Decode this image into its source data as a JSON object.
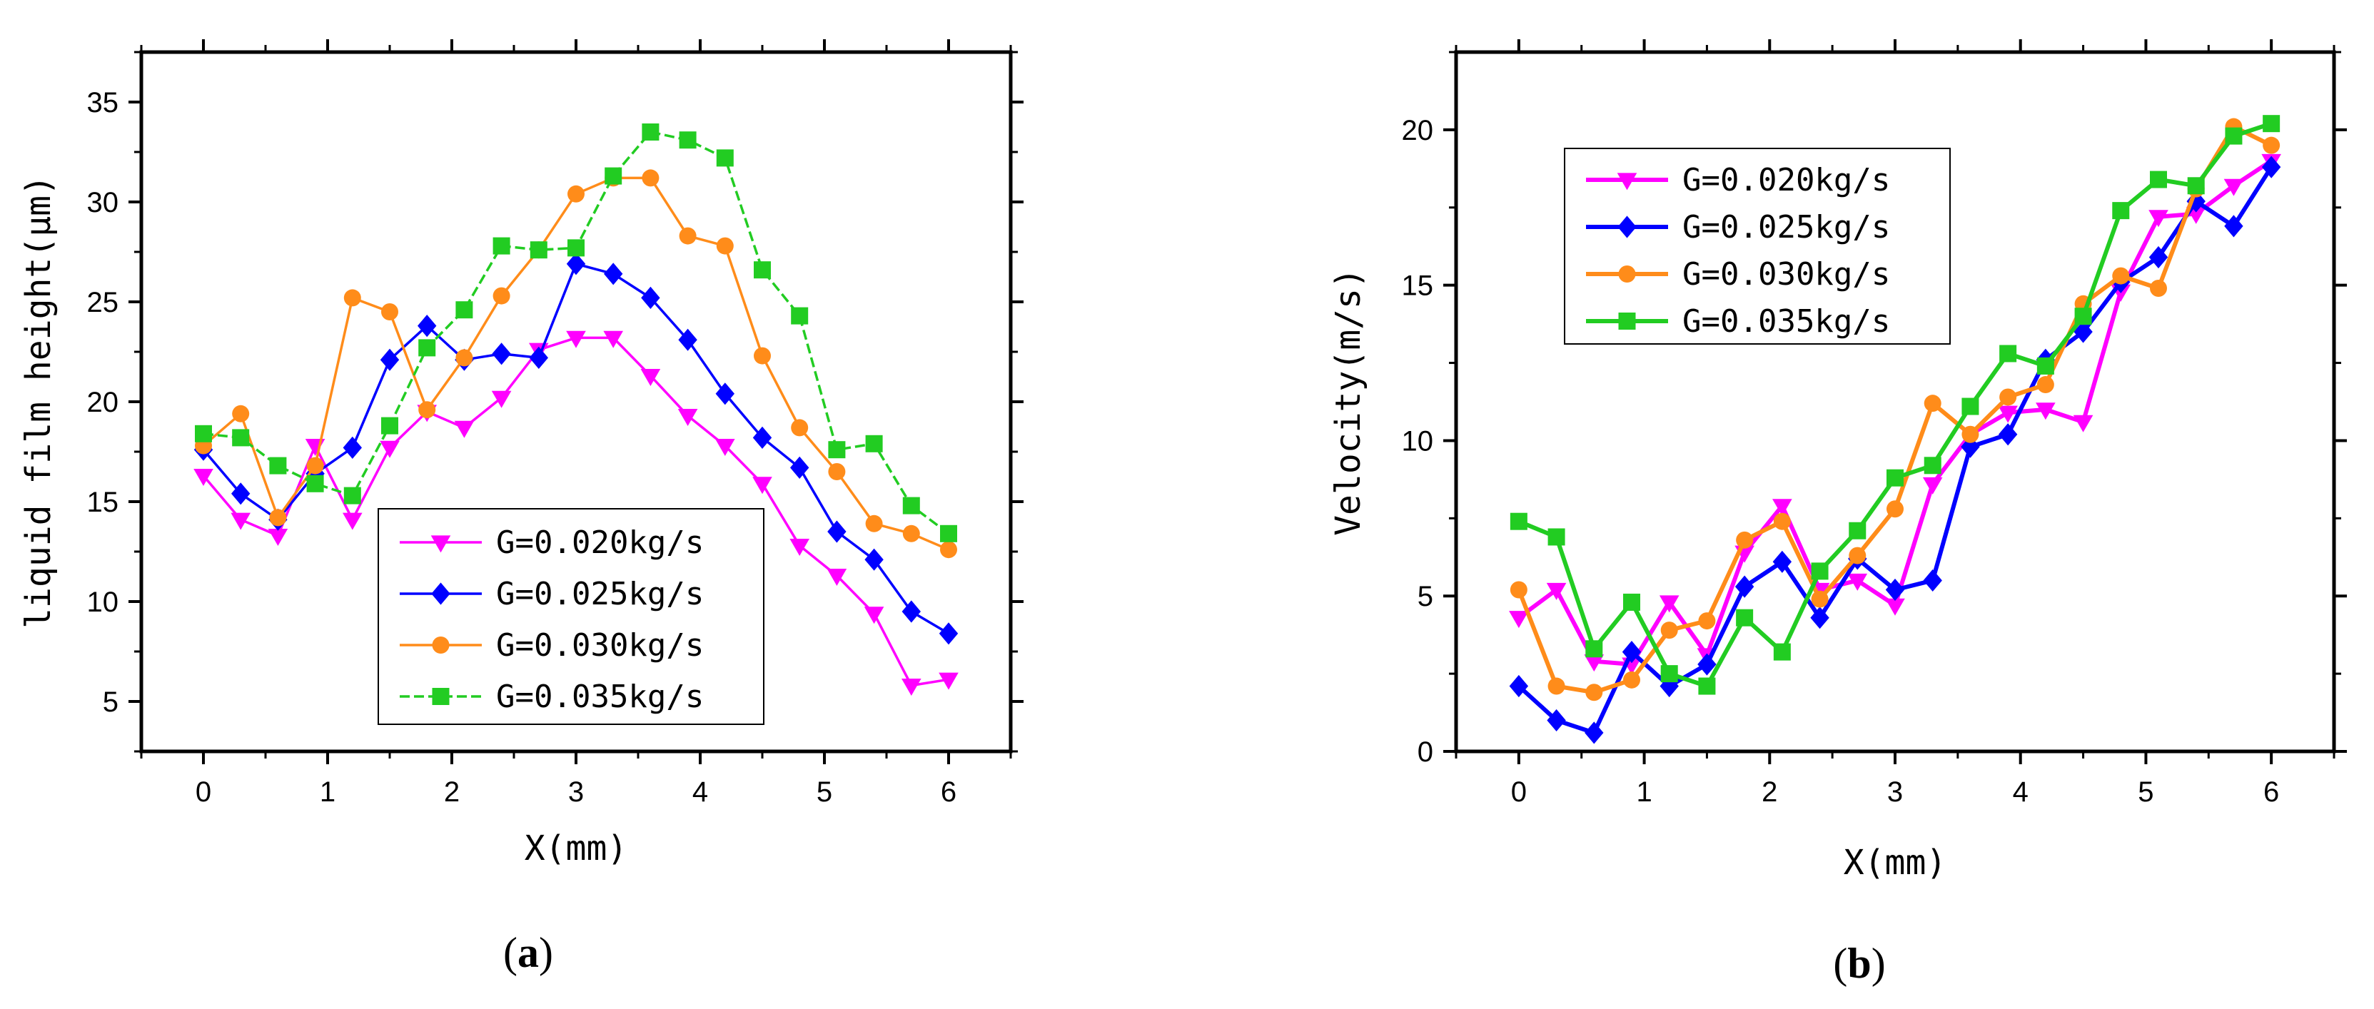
{
  "chart_data": [
    {
      "type": "line",
      "panel_label": "a",
      "xlabel": "X(mm)",
      "ylabel": "liquid film height(μm)",
      "xlim": [
        -0.5,
        6.5
      ],
      "ylim": [
        2.5,
        37.5
      ],
      "xticks": [
        0,
        1,
        2,
        3,
        4,
        5,
        6
      ],
      "yticks": [
        5,
        10,
        15,
        20,
        25,
        30,
        35
      ],
      "x": [
        0,
        0.3,
        0.6,
        0.9,
        1.2,
        1.5,
        1.8,
        2.1,
        2.4,
        2.7,
        3.0,
        3.3,
        3.6,
        3.9,
        4.2,
        4.5,
        4.8,
        5.1,
        5.4,
        5.7,
        6.0
      ],
      "legend_position": "bottom-center",
      "series": [
        {
          "name": "G=0.020kg/s",
          "color": "#ff00ff",
          "marker": "triangle-down",
          "dash": "solid",
          "values": [
            16.3,
            14.1,
            13.3,
            17.8,
            14.1,
            17.7,
            19.5,
            18.7,
            20.2,
            22.6,
            23.2,
            23.2,
            21.3,
            19.3,
            17.8,
            15.9,
            12.8,
            11.3,
            9.4,
            5.8,
            6.1
          ]
        },
        {
          "name": "G=0.025kg/s",
          "color": "#0000ff",
          "marker": "diamond",
          "dash": "solid",
          "values": [
            17.6,
            15.4,
            14.1,
            16.4,
            17.7,
            22.1,
            23.8,
            22.1,
            22.4,
            22.2,
            26.9,
            26.4,
            25.2,
            23.1,
            20.4,
            18.2,
            16.7,
            13.5,
            12.1,
            9.5,
            8.4
          ]
        },
        {
          "name": "G=0.030kg/s",
          "color": "#ff8c1a",
          "marker": "circle",
          "dash": "solid",
          "values": [
            17.8,
            19.4,
            14.2,
            16.8,
            25.2,
            24.5,
            19.6,
            22.2,
            25.3,
            27.6,
            30.4,
            31.2,
            31.2,
            28.3,
            27.8,
            22.3,
            18.7,
            16.5,
            13.9,
            13.4,
            12.6
          ]
        },
        {
          "name": "G=0.035kg/s",
          "color": "#22cc22",
          "marker": "square",
          "dash": "dashed",
          "values": [
            18.4,
            18.2,
            16.8,
            15.9,
            15.3,
            18.8,
            22.7,
            24.6,
            27.8,
            27.6,
            27.7,
            31.3,
            33.5,
            33.1,
            32.2,
            26.6,
            24.3,
            17.6,
            17.9,
            14.8,
            13.4
          ]
        }
      ]
    },
    {
      "type": "line",
      "panel_label": "b",
      "xlabel": "X(mm)",
      "ylabel": "Velocity(m/s)",
      "xlim": [
        -0.5,
        6.5
      ],
      "ylim": [
        0,
        22.5
      ],
      "xticks": [
        0,
        1,
        2,
        3,
        4,
        5,
        6
      ],
      "yticks": [
        0,
        5,
        10,
        15,
        20
      ],
      "x": [
        0,
        0.3,
        0.6,
        0.9,
        1.2,
        1.5,
        1.8,
        2.1,
        2.4,
        2.7,
        3.0,
        3.3,
        3.6,
        3.9,
        4.2,
        4.5,
        4.8,
        5.1,
        5.4,
        5.7,
        6.0
      ],
      "legend_position": "top-left",
      "series": [
        {
          "name": "G=0.020kg/s",
          "color": "#ff00ff",
          "marker": "triangle-down",
          "dash": "solid",
          "values": [
            4.3,
            5.2,
            2.9,
            2.8,
            4.8,
            3.1,
            6.4,
            7.9,
            5.2,
            5.5,
            4.7,
            8.6,
            10.2,
            10.9,
            11.0,
            10.6,
            14.8,
            17.2,
            17.3,
            18.2,
            19.0
          ]
        },
        {
          "name": "G=0.025kg/s",
          "color": "#0000ff",
          "marker": "diamond",
          "dash": "solid",
          "values": [
            2.1,
            1.0,
            0.6,
            3.2,
            2.1,
            2.8,
            5.3,
            6.1,
            4.3,
            6.2,
            5.2,
            5.5,
            9.8,
            10.2,
            12.6,
            13.5,
            15.1,
            15.9,
            17.7,
            16.9,
            18.8
          ]
        },
        {
          "name": "G=0.030kg/s",
          "color": "#ff8c1a",
          "marker": "circle",
          "dash": "solid",
          "values": [
            5.2,
            2.1,
            1.9,
            2.3,
            3.9,
            4.2,
            6.8,
            7.4,
            4.9,
            6.3,
            7.8,
            11.2,
            10.2,
            11.4,
            11.8,
            14.4,
            15.3,
            14.9,
            18.1,
            20.1,
            19.5
          ]
        },
        {
          "name": "G=0.035kg/s",
          "color": "#22cc22",
          "marker": "square",
          "dash": "solid",
          "values": [
            7.4,
            6.9,
            3.3,
            4.8,
            2.5,
            2.1,
            4.3,
            3.2,
            5.8,
            7.1,
            8.8,
            9.2,
            11.1,
            12.8,
            12.4,
            14.0,
            17.4,
            18.4,
            18.2,
            19.8,
            20.2
          ]
        }
      ]
    }
  ]
}
